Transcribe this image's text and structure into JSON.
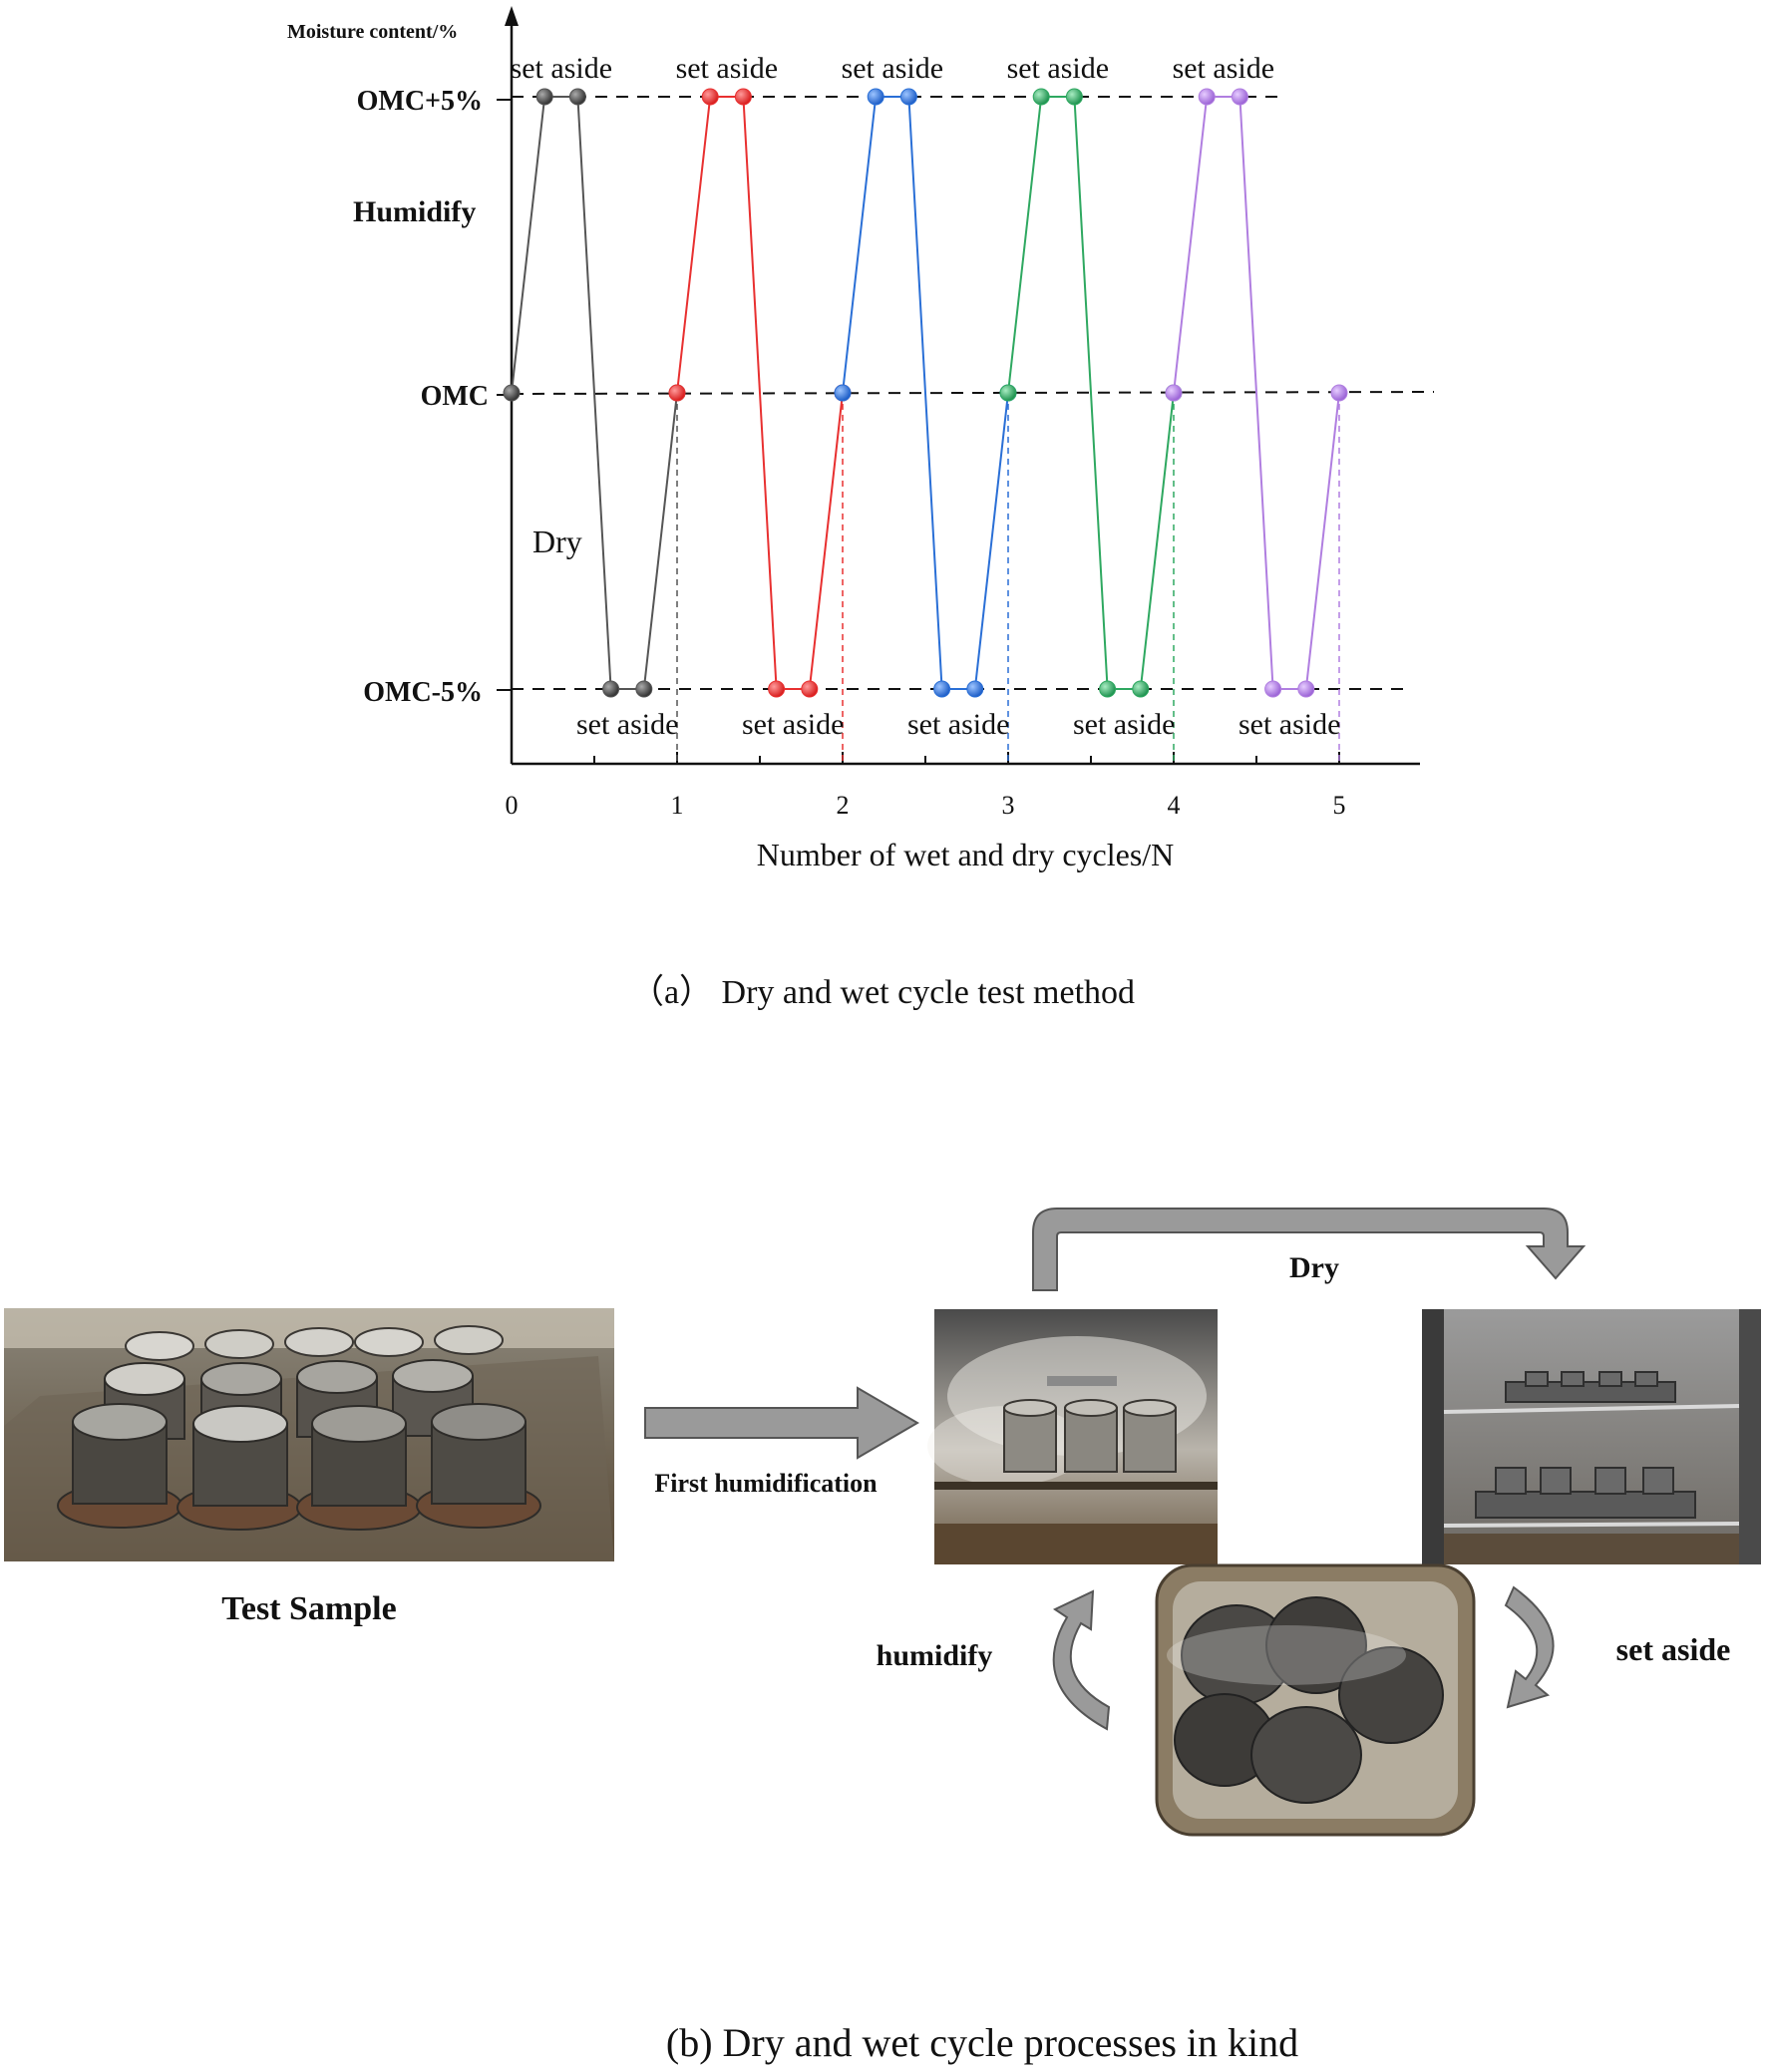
{
  "part_a": {
    "y_axis_label": "Moisture content/%",
    "y_levels": {
      "high": "OMC+5%",
      "mid": "OMC",
      "low": "OMC-5%"
    },
    "humidify_label": "Humidify",
    "dry_label": "Dry",
    "x_axis_label": "Number of wet and dry cycles/N",
    "caption": "（a） Dry and wet cycle test method",
    "set_aside_label": "set aside",
    "x_ticks": [
      "0",
      "1",
      "2",
      "3",
      "4",
      "5"
    ]
  },
  "chart_data": {
    "type": "line",
    "title": "",
    "xlabel": "Number of wet and dry cycles/N",
    "ylabel": "Moisture content/%",
    "xlim": [
      0,
      5.5
    ],
    "y_categories": [
      "OMC-5%",
      "OMC",
      "OMC+5%"
    ],
    "series": [
      {
        "color": "#555555",
        "x": [
          0,
          0.2,
          0.4,
          0.6,
          0.8,
          1.0
        ],
        "y": [
          "OMC",
          "OMC+5%",
          "OMC+5%",
          "OMC-5%",
          "OMC-5%",
          "OMC"
        ]
      },
      {
        "color": "#e83030",
        "x": [
          1.0,
          1.2,
          1.4,
          1.6,
          1.8,
          2.0
        ],
        "y": [
          "OMC",
          "OMC+5%",
          "OMC+5%",
          "OMC-5%",
          "OMC-5%",
          "OMC"
        ]
      },
      {
        "color": "#2a6fd6",
        "x": [
          2.0,
          2.2,
          2.4,
          2.6,
          2.8,
          3.0
        ],
        "y": [
          "OMC",
          "OMC+5%",
          "OMC+5%",
          "OMC-5%",
          "OMC-5%",
          "OMC"
        ]
      },
      {
        "color": "#2ea860",
        "x": [
          3.0,
          3.2,
          3.4,
          3.6,
          3.8,
          4.0
        ],
        "y": [
          "OMC",
          "OMC+5%",
          "OMC+5%",
          "OMC-5%",
          "OMC-5%",
          "OMC"
        ]
      },
      {
        "color": "#b07ee0",
        "x": [
          4.0,
          4.2,
          4.4,
          4.6,
          4.8,
          5.0
        ],
        "y": [
          "OMC",
          "OMC+5%",
          "OMC+5%",
          "OMC-5%",
          "OMC-5%",
          "OMC"
        ]
      }
    ],
    "annotations": [
      "set aside",
      "Humidify",
      "Dry"
    ]
  },
  "part_b": {
    "test_sample_label": "Test Sample",
    "first_humidification_label": "First humidification",
    "dry_label": "Dry",
    "humidify_label": "humidify",
    "set_aside_label": "set aside",
    "caption": "(b) Dry and wet cycle processes in kind"
  },
  "colors": {
    "axis": "#111111",
    "arrow_fill": "#9a9a9a",
    "arrow_stroke": "#555555"
  }
}
